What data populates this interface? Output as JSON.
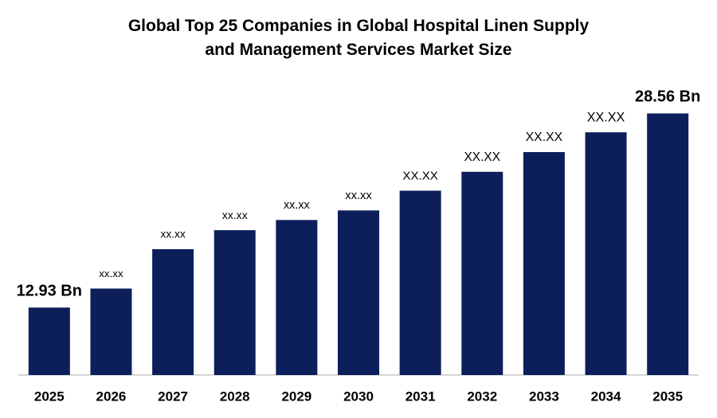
{
  "chart_data": {
    "type": "bar",
    "title": "Global Top 25 Companies in Global Hospital Linen Supply and Management Services Market Size",
    "categories": [
      "2025",
      "2026",
      "2027",
      "2028",
      "2029",
      "2030",
      "2031",
      "2032",
      "2033",
      "2034",
      "2035"
    ],
    "values": [
      12.93,
      14.46,
      17.63,
      19.16,
      19.98,
      20.75,
      22.34,
      23.86,
      25.45,
      27.04,
      28.56
    ],
    "value_labels": [
      "12.93 Bn",
      "xx.xx",
      "xx.xx",
      "xx.xx",
      "xx.xx",
      "xx.xx",
      "XX.XX",
      "XX.XX",
      "XX.XX",
      "XX.XX",
      "28.56 Bn"
    ],
    "color": "#0c1f5b",
    "ylim": [
      7.5,
      30
    ]
  }
}
